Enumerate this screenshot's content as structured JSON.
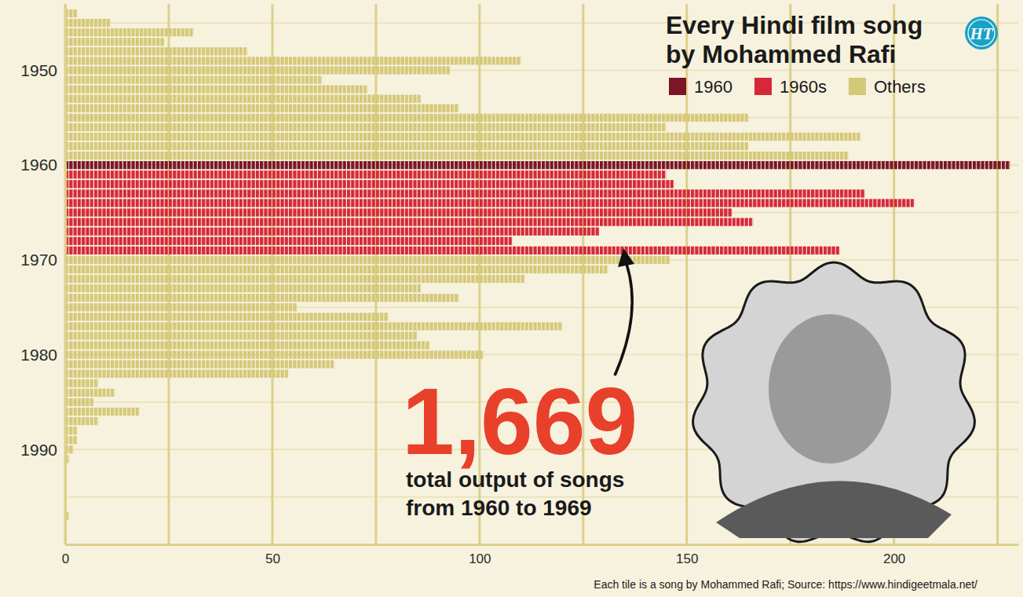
{
  "chart_data": {
    "type": "bar",
    "orientation": "horizontal",
    "title": "Every Hindi film song by Mohammed Rafi",
    "logo": "HT",
    "caption": "Each tile is a song by Mohammed Rafi; Source: https://www.hindigeetmala.net/",
    "annotations": [
      {
        "text": "1,669"
      },
      {
        "text": "total output of songs from 1960 to 1969"
      }
    ],
    "legend": "top-right",
    "grid": true,
    "categories": [
      1944,
      1945,
      1946,
      1947,
      1948,
      1949,
      1950,
      1951,
      1952,
      1953,
      1954,
      1955,
      1956,
      1957,
      1958,
      1959,
      1960,
      1961,
      1962,
      1963,
      1964,
      1965,
      1966,
      1967,
      1968,
      1969,
      1970,
      1971,
      1972,
      1973,
      1974,
      1975,
      1976,
      1977,
      1978,
      1979,
      1980,
      1981,
      1982,
      1983,
      1984,
      1985,
      1986,
      1987,
      1988,
      1989,
      1990,
      1991,
      1997
    ],
    "series": [
      {
        "name": "1960",
        "color": "#7b1528",
        "values": [
          null,
          null,
          null,
          null,
          null,
          null,
          null,
          null,
          null,
          null,
          null,
          null,
          null,
          null,
          null,
          null,
          228,
          null,
          null,
          null,
          null,
          null,
          null,
          null,
          null,
          null,
          null,
          null,
          null,
          null,
          null,
          null,
          null,
          null,
          null,
          null,
          null,
          null,
          null,
          null,
          null,
          null,
          null,
          null,
          null,
          null,
          null,
          null,
          null
        ]
      },
      {
        "name": "1960s",
        "color": "#d62839",
        "values": [
          null,
          null,
          null,
          null,
          null,
          null,
          null,
          null,
          null,
          null,
          null,
          null,
          null,
          null,
          null,
          null,
          null,
          145,
          147,
          193,
          205,
          161,
          166,
          129,
          108,
          187,
          null,
          null,
          null,
          null,
          null,
          null,
          null,
          null,
          null,
          null,
          null,
          null,
          null,
          null,
          null,
          null,
          null,
          null,
          null,
          null,
          null,
          null,
          null
        ]
      },
      {
        "name": "Others",
        "color": "#d5c878",
        "values": [
          3,
          11,
          31,
          24,
          44,
          110,
          93,
          62,
          73,
          86,
          95,
          165,
          145,
          192,
          165,
          189,
          null,
          null,
          null,
          null,
          null,
          null,
          null,
          null,
          null,
          null,
          146,
          131,
          111,
          86,
          95,
          56,
          78,
          120,
          85,
          88,
          101,
          65,
          54,
          8,
          12,
          7,
          18,
          8,
          3,
          3,
          2,
          1,
          1
        ]
      }
    ],
    "xlim": [
      0,
      230
    ],
    "xticks": [
      0,
      {
        "value": 25,
        "label": null
      },
      50,
      {
        "value": 75,
        "label": null
      },
      100,
      {
        "value": 125,
        "label": null
      },
      150,
      {
        "value": 175,
        "label": null
      },
      200,
      {
        "value": 225,
        "label": null
      }
    ],
    "ylim": [
      1943,
      2000
    ],
    "yticks": [
      {
        "value": 1945,
        "label": null
      },
      1950,
      {
        "value": 1955,
        "label": null
      },
      1960,
      {
        "value": 1965,
        "label": null
      },
      1970,
      {
        "value": 1975,
        "label": null
      },
      1980,
      {
        "value": 1985,
        "label": null
      },
      1990,
      {
        "value": 1995,
        "label": null
      }
    ]
  }
}
